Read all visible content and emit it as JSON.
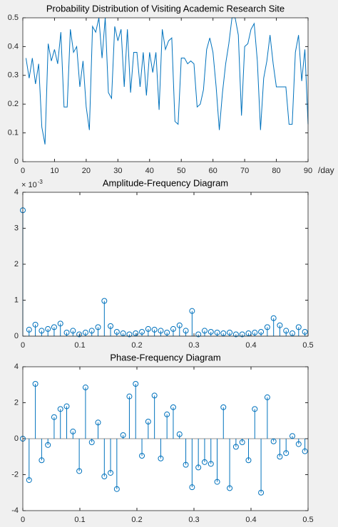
{
  "chart_data": [
    {
      "type": "line",
      "title": "Probability Distribution of Visiting Academic Research Site",
      "x_label": "/day",
      "color": "#0072bd",
      "x": [
        1,
        2,
        3,
        4,
        5,
        6,
        7,
        8,
        9,
        10,
        11,
        12,
        13,
        14,
        15,
        16,
        17,
        18,
        19,
        20,
        21,
        22,
        23,
        24,
        25,
        26,
        27,
        28,
        29,
        30,
        31,
        32,
        33,
        34,
        35,
        36,
        37,
        38,
        39,
        40,
        41,
        42,
        43,
        44,
        45,
        46,
        47,
        48,
        49,
        50,
        51,
        52,
        53,
        54,
        55,
        56,
        57,
        58,
        59,
        60,
        61,
        62,
        63,
        64,
        65,
        66,
        67,
        68,
        69,
        70,
        71,
        72,
        73,
        74,
        75,
        76,
        77,
        78,
        79,
        80,
        81,
        82,
        83,
        84,
        85,
        86,
        87,
        88,
        89,
        90
      ],
      "values": [
        0.36,
        0.29,
        0.36,
        0.27,
        0.34,
        0.12,
        0.06,
        0.41,
        0.35,
        0.39,
        0.34,
        0.45,
        0.19,
        0.19,
        0.46,
        0.38,
        0.4,
        0.26,
        0.35,
        0.19,
        0.11,
        0.47,
        0.45,
        0.5,
        0.36,
        0.5,
        0.24,
        0.22,
        0.47,
        0.42,
        0.46,
        0.26,
        0.46,
        0.24,
        0.38,
        0.38,
        0.26,
        0.38,
        0.23,
        0.38,
        0.31,
        0.38,
        0.18,
        0.46,
        0.39,
        0.42,
        0.43,
        0.14,
        0.13,
        0.36,
        0.36,
        0.34,
        0.35,
        0.34,
        0.19,
        0.2,
        0.25,
        0.39,
        0.43,
        0.38,
        0.26,
        0.11,
        0.24,
        0.34,
        0.41,
        0.5,
        0.5,
        0.44,
        0.16,
        0.4,
        0.41,
        0.46,
        0.48,
        0.35,
        0.11,
        0.29,
        0.35,
        0.44,
        0.34,
        0.26,
        0.26,
        0.26,
        0.26,
        0.13,
        0.13,
        0.38,
        0.44,
        0.28,
        0.39,
        0.13
      ],
      "xlim": [
        0,
        90
      ],
      "xticks": [
        0,
        10,
        20,
        30,
        40,
        50,
        60,
        70,
        80,
        90
      ],
      "ylim": [
        0,
        0.5
      ],
      "yticks": [
        0,
        0.1,
        0.2,
        0.3,
        0.4,
        0.5
      ]
    },
    {
      "type": "stem",
      "title": "Amplitude-Frequency Diagram",
      "y_multiplier": "× 10",
      "y_multiplier_exponent": "-3",
      "color": "#0072bd",
      "x": [
        0,
        0.011,
        0.022,
        0.033,
        0.044,
        0.0549,
        0.0659,
        0.0769,
        0.0879,
        0.0989,
        0.1099,
        0.1209,
        0.1319,
        0.1429,
        0.1538,
        0.1648,
        0.1758,
        0.1868,
        0.1978,
        0.2088,
        0.2198,
        0.2308,
        0.2418,
        0.2527,
        0.2637,
        0.2747,
        0.2857,
        0.2967,
        0.3077,
        0.3187,
        0.3297,
        0.3407,
        0.3516,
        0.3626,
        0.3736,
        0.3846,
        0.3956,
        0.4066,
        0.4176,
        0.4286,
        0.4396,
        0.4505,
        0.4615,
        0.4725,
        0.4835,
        0.4945
      ],
      "values": [
        3.5,
        0.18,
        0.32,
        0.15,
        0.2,
        0.25,
        0.35,
        0.1,
        0.15,
        0.05,
        0.1,
        0.15,
        0.25,
        0.98,
        0.28,
        0.12,
        0.08,
        0.05,
        0.08,
        0.12,
        0.2,
        0.18,
        0.15,
        0.1,
        0.2,
        0.3,
        0.15,
        0.7,
        0.05,
        0.15,
        0.12,
        0.1,
        0.08,
        0.1,
        0.05,
        0.05,
        0.08,
        0.1,
        0.12,
        0.25,
        0.5,
        0.3,
        0.15,
        0.08,
        0.25,
        0.12
      ],
      "xlim": [
        0,
        0.5
      ],
      "xticks": [
        0,
        0.1,
        0.2,
        0.3,
        0.4,
        0.5
      ],
      "ylim": [
        0,
        4
      ],
      "yticks": [
        0,
        1,
        2,
        3,
        4
      ]
    },
    {
      "type": "stem",
      "title": "Phase-Frequency Diagram",
      "color": "#0072bd",
      "x": [
        0,
        0.011,
        0.022,
        0.033,
        0.044,
        0.0549,
        0.0659,
        0.0769,
        0.0879,
        0.0989,
        0.1099,
        0.1209,
        0.1319,
        0.1429,
        0.1538,
        0.1648,
        0.1758,
        0.1868,
        0.1978,
        0.2088,
        0.2198,
        0.2308,
        0.2418,
        0.2527,
        0.2637,
        0.2747,
        0.2857,
        0.2967,
        0.3077,
        0.3187,
        0.3297,
        0.3407,
        0.3516,
        0.3626,
        0.3736,
        0.3846,
        0.3956,
        0.4066,
        0.4176,
        0.4286,
        0.4396,
        0.4505,
        0.4615,
        0.4725,
        0.4835,
        0.4945
      ],
      "values": [
        0,
        -2.3,
        3.05,
        -1.2,
        -0.35,
        1.2,
        1.65,
        1.8,
        0.4,
        -1.8,
        2.85,
        -0.2,
        0.9,
        -2.1,
        -1.9,
        -2.8,
        0.2,
        2.35,
        3.05,
        -0.95,
        0.95,
        2.4,
        -1.1,
        1.35,
        1.75,
        0.25,
        -1.45,
        -2.7,
        -1.6,
        -1.3,
        -1.4,
        -2.4,
        1.75,
        -2.75,
        -0.45,
        -0.2,
        -1.2,
        1.65,
        -3.0,
        2.3,
        -0.15,
        -1.0,
        -0.8,
        0.15,
        -0.3,
        -0.7
      ],
      "xlim": [
        0,
        0.5
      ],
      "xticks": [
        0,
        0.1,
        0.2,
        0.3,
        0.4,
        0.5
      ],
      "ylim": [
        -4,
        4
      ],
      "yticks": [
        -4,
        -2,
        0,
        2,
        4
      ]
    }
  ]
}
